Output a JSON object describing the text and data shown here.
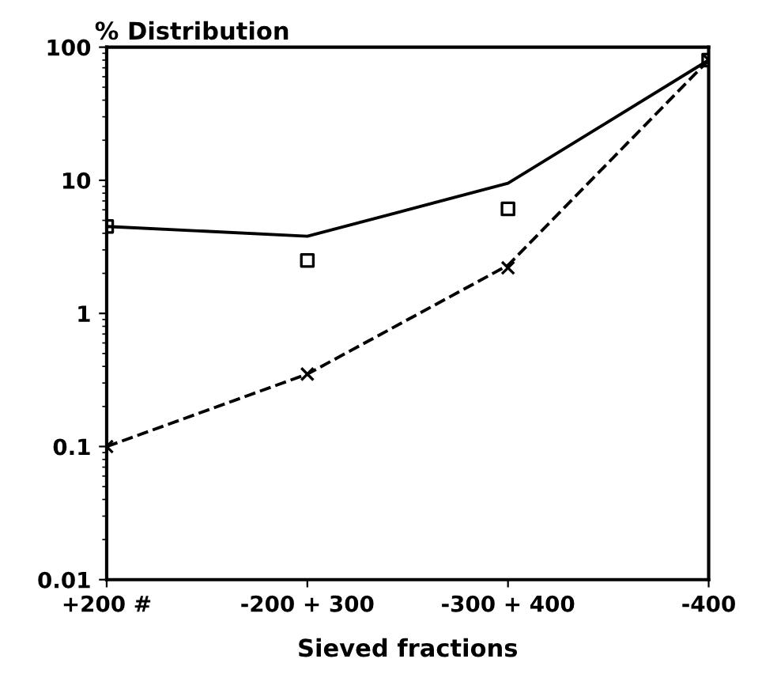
{
  "chart_data": {
    "type": "line",
    "ylabel": "% Distribution",
    "xlabel": "Sieved fractions",
    "log": "y",
    "grid": false,
    "categories": [
      "+200 #",
      "-200 + 300",
      "-300 + 400",
      "-400"
    ],
    "ylim": [
      0.01,
      100
    ],
    "yticks": [
      0.01,
      0.1,
      1,
      10,
      100
    ],
    "series": [
      {
        "type": "scatter",
        "marker": "square",
        "color": "#000000",
        "values": [
          4.5,
          2.5,
          6.1,
          80
        ]
      },
      {
        "type": "scatter",
        "marker": "cross",
        "color": "#000000",
        "values": [
          0.1,
          0.35,
          2.2,
          80
        ]
      },
      {
        "line_style": "solid",
        "color": "#000000",
        "values": [
          4.5,
          3.8,
          9.5,
          80
        ]
      },
      {
        "line_style": "dashed",
        "color": "#000000",
        "values": [
          0.1,
          0.35,
          2.3,
          80
        ]
      }
    ]
  }
}
